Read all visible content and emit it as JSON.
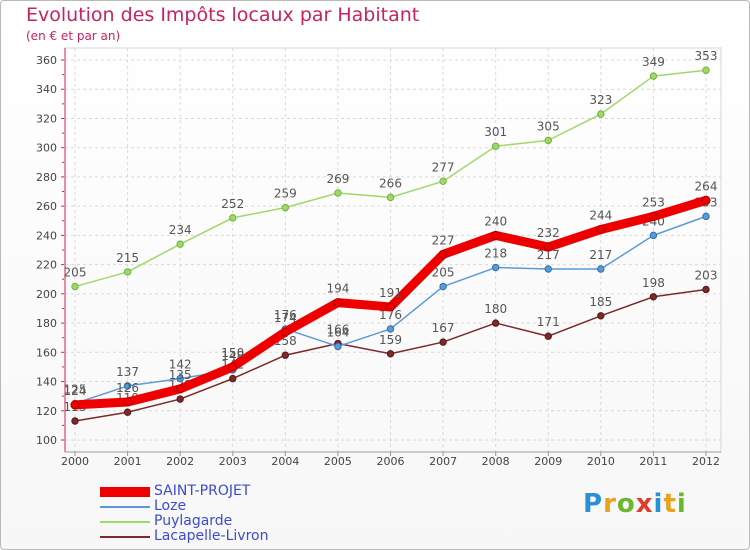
{
  "page": {
    "title": "Evolution des Impôts locaux par Habitant",
    "subtitle": "(en € et par an)"
  },
  "logo": {
    "text": "Proxiti",
    "letters": [
      {
        "ch": "P",
        "color": "#2b8fd6"
      },
      {
        "ch": "r",
        "color": "#e8a21c"
      },
      {
        "ch": "o",
        "color": "#6bb82e"
      },
      {
        "ch": "x",
        "color": "#e23b2c"
      },
      {
        "ch": "i",
        "color": "#2b8fd6"
      },
      {
        "ch": "t",
        "color": "#e8a21c"
      },
      {
        "ch": "i",
        "color": "#6bb82e"
      }
    ]
  },
  "chart_data": {
    "type": "line",
    "title": "Evolution des Impôts locaux par Habitant",
    "subtitle": "(en € et par an)",
    "x": [
      "2000",
      "2001",
      "2002",
      "2003",
      "2004",
      "2005",
      "2006",
      "2007",
      "2008",
      "2009",
      "2010",
      "2011",
      "2012"
    ],
    "ylim": [
      100,
      360
    ],
    "yticks": [
      100,
      120,
      140,
      160,
      180,
      200,
      220,
      240,
      260,
      280,
      300,
      320,
      340,
      360
    ],
    "grid": true,
    "legend_position": "bottom-left",
    "series": [
      {
        "name": "Puylagarde",
        "color": "#9fd86b",
        "values": [
          205,
          215,
          234,
          252,
          259,
          269,
          266,
          277,
          301,
          305,
          323,
          349,
          353
        ]
      },
      {
        "name": "Lacapelle-Livron",
        "color": "#7b2a2a",
        "values": [
          113,
          119,
          128,
          142,
          158,
          166,
          159,
          167,
          180,
          171,
          185,
          198,
          203
        ]
      },
      {
        "name": "Loze",
        "color": "#5b9bd5",
        "values": [
          125,
          137,
          142,
          148,
          176,
          164,
          176,
          205,
          218,
          217,
          217,
          240,
          253
        ]
      },
      {
        "name": "SAINT-PROJET",
        "color": "#ee0000",
        "values": [
          124,
          126,
          135,
          150,
          174,
          194,
          191,
          227,
          240,
          232,
          244,
          253,
          264
        ]
      }
    ],
    "legend_order": [
      "SAINT-PROJET",
      "Loze",
      "Puylagarde",
      "Lacapelle-Livron"
    ]
  }
}
